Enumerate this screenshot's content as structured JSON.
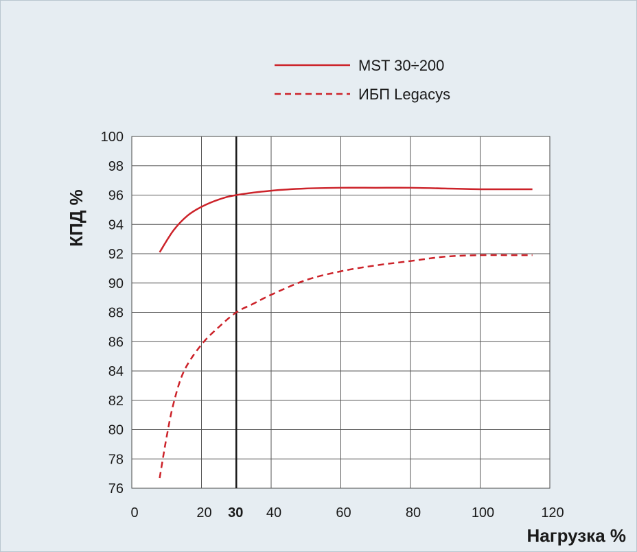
{
  "chart_data": {
    "type": "line",
    "title": "",
    "xlabel": "Нагрузка %",
    "ylabel": "КПД %",
    "xlim": [
      0,
      120
    ],
    "ylim": [
      76,
      100
    ],
    "x_ticks": [
      "0",
      "20",
      "30",
      "40",
      "60",
      "80",
      "100",
      "120"
    ],
    "y_ticks": [
      "76",
      "78",
      "80",
      "82",
      "84",
      "86",
      "88",
      "90",
      "92",
      "94",
      "96",
      "98",
      "100"
    ],
    "grid": true,
    "legend_position": "top-right",
    "highlight_x": {
      "value": 30,
      "label": "30"
    },
    "series": [
      {
        "name": "MST 30÷200",
        "style": "solid",
        "color": "#cc2229",
        "x": [
          8,
          12,
          16,
          20,
          25,
          30,
          40,
          50,
          60,
          70,
          80,
          90,
          100,
          110,
          115
        ],
        "y": [
          92.1,
          93.6,
          94.6,
          95.2,
          95.7,
          96.0,
          96.3,
          96.45,
          96.5,
          96.5,
          96.5,
          96.45,
          96.4,
          96.4,
          96.4
        ]
      },
      {
        "name": "ИБП Legacys",
        "style": "dashed",
        "color": "#cc2229",
        "x": [
          8,
          10,
          12,
          15,
          20,
          25,
          30,
          35,
          40,
          50,
          60,
          70,
          80,
          90,
          100,
          110,
          115
        ],
        "y": [
          76.7,
          79.5,
          81.8,
          84.0,
          85.8,
          87.0,
          88.0,
          88.6,
          89.2,
          90.2,
          90.8,
          91.2,
          91.5,
          91.8,
          91.9,
          91.9,
          91.9
        ]
      }
    ]
  }
}
